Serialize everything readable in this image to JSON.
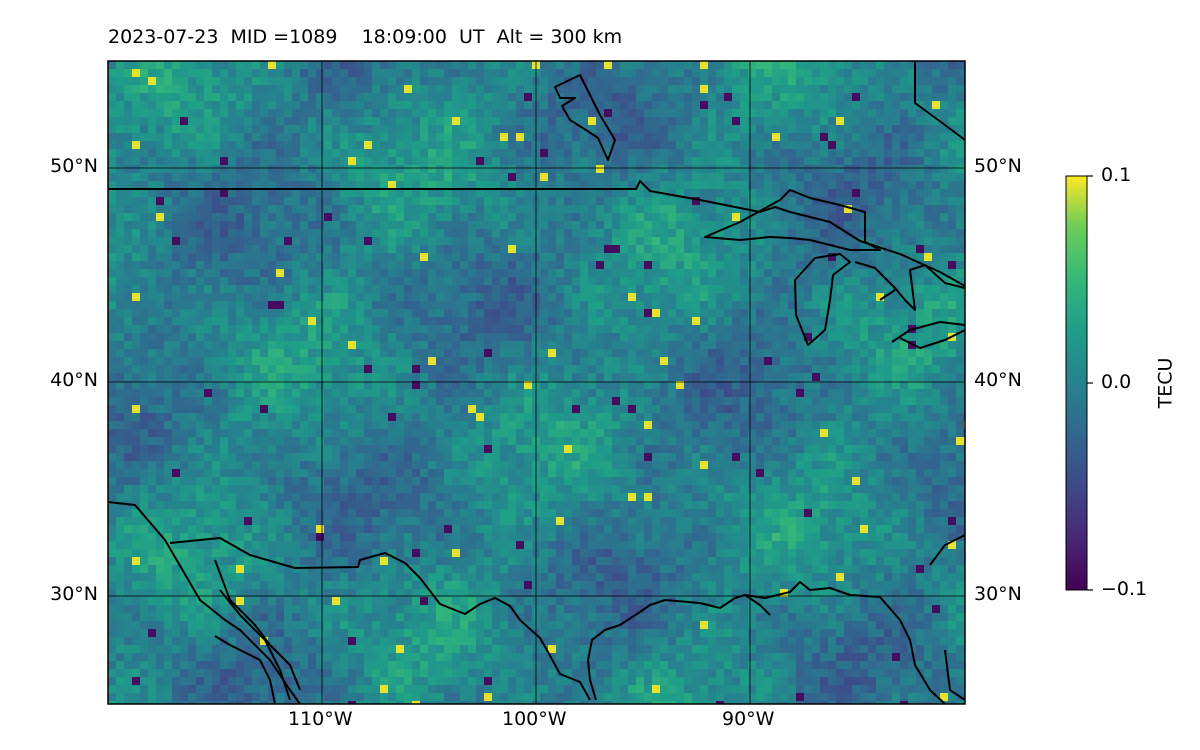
{
  "map": {
    "title": "2023-07-23  MID =1089    18:09:00  UT  Alt = 300 km",
    "lon_labels": [
      "110°W",
      "100°W",
      "90°W"
    ],
    "lat_labels": [
      "50°N",
      "40°N",
      "30°N"
    ],
    "lon_range": [
      -120,
      -80
    ],
    "lat_range": [
      25,
      55
    ],
    "colormap": "viridis",
    "basemap": "coastlines-and-borders"
  },
  "colorbar": {
    "label": "TECU",
    "ticks": [
      "0.1",
      "0.0",
      "−0.1"
    ],
    "range": [
      -0.1,
      0.1
    ]
  }
}
